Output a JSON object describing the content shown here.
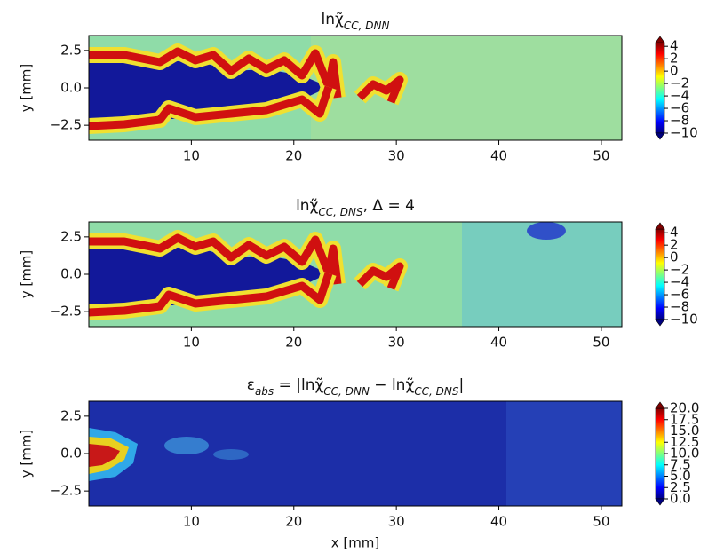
{
  "chart_data": [
    {
      "type": "contour",
      "title_parts": [
        {
          "text": "lnχ̃"
        },
        {
          "text": "CC, DNN",
          "sub": true
        }
      ],
      "ylabel": "y [mm]",
      "xlim": [
        0,
        52
      ],
      "xticks": [
        10,
        20,
        30,
        40,
        50
      ],
      "ylim": [
        -3.5,
        3.5
      ],
      "yticks": [
        {
          "value": -2.5,
          "label": "−2.5"
        },
        {
          "value": 0,
          "label": "0.0"
        },
        2.5
      ],
      "colormap": "jet",
      "clim": [
        -10,
        4.6
      ],
      "cticks": [
        {
          "value": -10,
          "label": "−10"
        },
        {
          "value": -8,
          "label": "−8"
        },
        {
          "value": -6,
          "label": "−6"
        },
        {
          "value": -4,
          "label": "−4"
        },
        {
          "value": -2,
          "label": "−2"
        },
        0,
        2,
        4
      ]
    },
    {
      "type": "contour",
      "title_parts": [
        {
          "text": "lnχ̃"
        },
        {
          "text": "CC, DNS",
          "sub": true
        },
        {
          "text": ", Δ = 4"
        }
      ],
      "ylabel": "y [mm]",
      "xlim": [
        0,
        52
      ],
      "xticks": [
        10,
        20,
        30,
        40,
        50
      ],
      "ylim": [
        -3.5,
        3.5
      ],
      "yticks": [
        {
          "value": -2.5,
          "label": "−2.5"
        },
        {
          "value": 0,
          "label": "0.0"
        },
        2.5
      ],
      "colormap": "jet",
      "clim": [
        -10,
        4.6
      ],
      "cticks": [
        {
          "value": -10,
          "label": "−10"
        },
        {
          "value": -8,
          "label": "−8"
        },
        {
          "value": -6,
          "label": "−6"
        },
        {
          "value": -4,
          "label": "−4"
        },
        {
          "value": -2,
          "label": "−2"
        },
        0,
        2,
        4
      ]
    },
    {
      "type": "contour",
      "title_parts": [
        {
          "text": "ε"
        },
        {
          "text": "abs",
          "sub": true
        },
        {
          "text": " = |lnχ̃"
        },
        {
          "text": "CC, DNN",
          "sub": true
        },
        {
          "text": " − lnχ̃"
        },
        {
          "text": "CC, DNS",
          "sub": true
        },
        {
          "text": "|"
        }
      ],
      "ylabel": "y [mm]",
      "xlabel": "x [mm]",
      "xlim": [
        0,
        52
      ],
      "xticks": [
        10,
        20,
        30,
        40,
        50
      ],
      "ylim": [
        -3.5,
        3.5
      ],
      "yticks": [
        {
          "value": -2.5,
          "label": "−2.5"
        },
        {
          "value": 0,
          "label": "0.0"
        },
        2.5
      ],
      "colormap": "jet",
      "clim": [
        0,
        20
      ],
      "cticks": [
        {
          "value": 0,
          "label": "0.0"
        },
        2.5,
        {
          "value": 5,
          "label": "5.0"
        },
        7.5,
        {
          "value": 10,
          "label": "10.0"
        },
        12.5,
        {
          "value": 15,
          "label": "15.0"
        },
        17.5,
        {
          "value": 20,
          "label": "20.0"
        }
      ]
    }
  ]
}
